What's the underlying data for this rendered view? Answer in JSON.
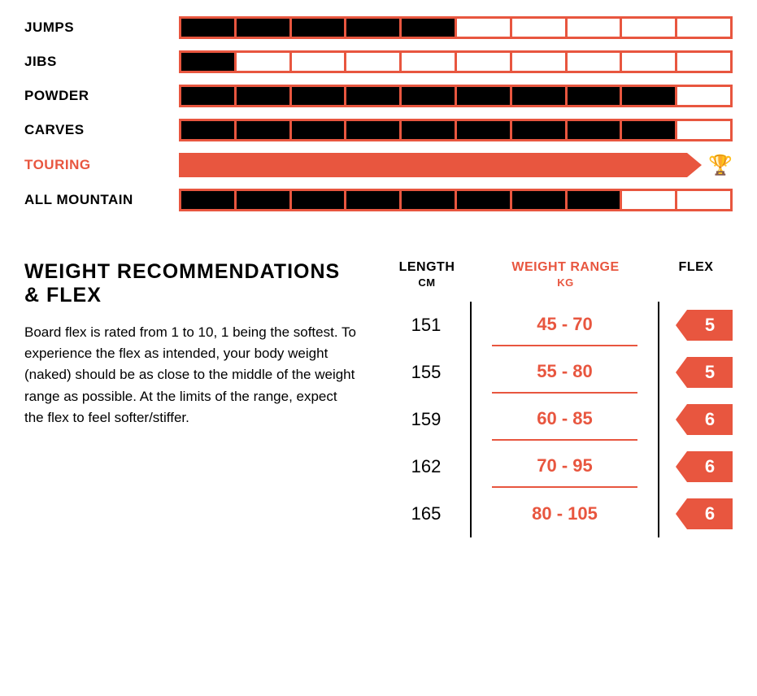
{
  "colors": {
    "accent": "#e8563f",
    "fill": "#000000",
    "bg": "#ffffff"
  },
  "ratings": {
    "max": 10,
    "items": [
      {
        "label": "JUMPS",
        "value": 5,
        "highlight": false
      },
      {
        "label": "JIBS",
        "value": 1,
        "highlight": false
      },
      {
        "label": "POWDER",
        "value": 9,
        "highlight": false
      },
      {
        "label": "CARVES",
        "value": 9,
        "highlight": false
      },
      {
        "label": "TOURING",
        "value": 10,
        "highlight": true,
        "trophy": true
      },
      {
        "label": "ALL MOUNTAIN",
        "value": 8,
        "highlight": false
      }
    ]
  },
  "section": {
    "title": "WEIGHT RECOMMENDATIONS & FLEX",
    "body": "Board flex is rated from 1 to 10, 1 being the softest. To experience the flex as intended, your body weight (naked) should be as close to the middle of the weight range as possible. At the limits of the range, expect the flex to feel softer/stiffer."
  },
  "table": {
    "headers": {
      "length": "LENGTH",
      "length_unit": "CM",
      "weight": "WEIGHT RANGE",
      "weight_unit": "KG",
      "flex": "FLEX"
    },
    "rows": [
      {
        "length": "151",
        "weight": "45 - 70",
        "flex": "5"
      },
      {
        "length": "155",
        "weight": "55 - 80",
        "flex": "5"
      },
      {
        "length": "159",
        "weight": "60 - 85",
        "flex": "6"
      },
      {
        "length": "162",
        "weight": "70 - 95",
        "flex": "6"
      },
      {
        "length": "165",
        "weight": "80 - 105",
        "flex": "6"
      }
    ]
  }
}
